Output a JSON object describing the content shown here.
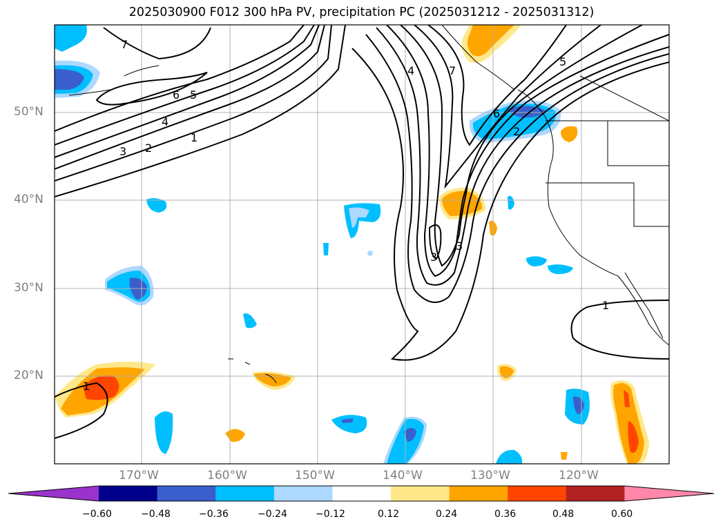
{
  "title": "2025030900 F012 300 hPa PV, precipitation PC (2025031212 - 2025031312)",
  "lat_labels": [
    "50°N",
    "40°N",
    "30°N",
    "20°N"
  ],
  "lon_labels": [
    "170°W",
    "160°W",
    "150°W",
    "140°W",
    "130°W",
    "120°W"
  ],
  "colorbar": {
    "ticks": [
      "−0.60",
      "−0.48",
      "−0.36",
      "−0.24",
      "−0.12",
      "0.12",
      "0.24",
      "0.36",
      "0.48",
      "0.60"
    ],
    "colors": [
      "#9933cc",
      "#00008b",
      "#3a5fcd",
      "#00bfff",
      "#add8ff",
      "#ffffff",
      "#ffe88a",
      "#ffa500",
      "#ff4500",
      "#b22222",
      "#ff88aa"
    ]
  },
  "contour_labels": [
    "7",
    "6",
    "5",
    "4",
    "3",
    "2",
    "1",
    "4",
    "7",
    "6",
    "5",
    "2",
    "3",
    "3",
    "1",
    "1"
  ],
  "colors": {
    "contour": "#000000",
    "grid": "#b0b0b0",
    "coast": "#000000"
  }
}
